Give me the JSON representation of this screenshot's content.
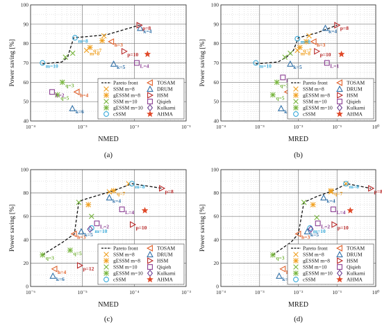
{
  "chart_data": [
    {
      "panel_label": "(a)",
      "type": "scatter",
      "xscale": "log",
      "xlabel": "NMED",
      "ylabel": "Power saving [%]",
      "xlim": [
        0.0001,
        0.1
      ],
      "ylim": [
        40,
        100
      ],
      "xticks": [
        "10⁻⁴",
        "10⁻³",
        "10⁻²",
        "10⁻¹"
      ],
      "yticks": [
        40,
        50,
        60,
        70,
        80,
        90,
        100
      ],
      "grid": true,
      "legend_position": "lower-right",
      "pareto_front": [
        [
          0.00017,
          69.5
        ],
        [
          0.0004,
          70.5
        ],
        [
          0.00052,
          73
        ],
        [
          0.00056,
          76
        ],
        [
          0.00068,
          83
        ],
        [
          0.0029,
          84.5
        ],
        [
          0.0125,
          89.5
        ]
      ],
      "points": [
        {
          "series": "SSM m=8",
          "x": 0.0012,
          "y": 76.5,
          "label": "m=8"
        },
        {
          "series": "SSM m=8",
          "x": 0.0026,
          "y": 84,
          "label": ""
        },
        {
          "series": "gESSM m=8",
          "x": 0.0014,
          "y": 78,
          "label": "q=7"
        },
        {
          "series": "gESSM m=8",
          "x": 0.0024,
          "y": 81.5,
          "label": ""
        },
        {
          "series": "SSM m=10",
          "x": 0.00047,
          "y": 73,
          "label": ""
        },
        {
          "series": "SSM m=10",
          "x": 0.00065,
          "y": 75,
          "label": ""
        },
        {
          "series": "gESSM m=10",
          "x": 0.00041,
          "y": 60,
          "label": "q=3"
        },
        {
          "series": "gESSM m=10",
          "x": 0.00033,
          "y": 53.5,
          "label": "q=5"
        },
        {
          "series": "cSSM",
          "x": 0.00017,
          "y": 70,
          "label": "m=10"
        },
        {
          "series": "cSSM",
          "x": 0.00072,
          "y": 83,
          "label": "m=8"
        },
        {
          "series": "TOSAM",
          "x": 0.00078,
          "y": 55,
          "label": "h=4"
        },
        {
          "series": "TOSAM",
          "x": 0.0036,
          "y": 81,
          "label": "h=3"
        },
        {
          "series": "DRUM",
          "x": 0.00064,
          "y": 46.5,
          "label": "k=6"
        },
        {
          "series": "DRUM",
          "x": 0.004,
          "y": 69.5,
          "label": "k=5"
        },
        {
          "series": "DRUM",
          "x": 0.013,
          "y": 88,
          "label": "k=4"
        },
        {
          "series": "HSM",
          "x": 0.0034,
          "y": 58,
          "label": "p=12"
        },
        {
          "series": "HSM",
          "x": 0.0064,
          "y": 76,
          "label": "p=10"
        },
        {
          "series": "HSM",
          "x": 0.0125,
          "y": 89.5,
          "label": "p=8"
        },
        {
          "series": "Qiqieh",
          "x": 0.00026,
          "y": 55,
          "label": "L=2"
        },
        {
          "series": "Qiqieh",
          "x": 0.0112,
          "y": 70,
          "label": "L=4"
        },
        {
          "series": "Kulkarni",
          "x": 0.013,
          "y": 52,
          "label": ""
        },
        {
          "series": "AHMA",
          "x": 0.018,
          "y": 74.5,
          "label": ""
        }
      ]
    },
    {
      "panel_label": "(b)",
      "type": "scatter",
      "xscale": "log",
      "xlabel": "MRED",
      "ylabel": "Power saving [%]",
      "xlim": [
        0.0001,
        1
      ],
      "ylim": [
        40,
        100
      ],
      "xticks": [
        "10⁻⁴",
        "10⁻³",
        "10⁻²",
        "10⁻¹",
        "10⁰"
      ],
      "yticks": [
        40,
        50,
        60,
        70,
        80,
        90,
        100
      ],
      "grid": true,
      "legend_position": "lower-right",
      "pareto_front": [
        [
          0.0008,
          69.5
        ],
        [
          0.003,
          70.5
        ],
        [
          0.005,
          73
        ],
        [
          0.0075,
          76.5
        ],
        [
          0.01,
          83
        ],
        [
          0.03,
          85.5
        ],
        [
          0.1,
          89.5
        ]
      ],
      "points": [
        {
          "series": "SSM m=8",
          "x": 0.0095,
          "y": 76.5,
          "label": "m=8"
        },
        {
          "series": "SSM m=8",
          "x": 0.019,
          "y": 84,
          "label": ""
        },
        {
          "series": "gESSM m=8",
          "x": 0.011,
          "y": 78,
          "label": "q=7"
        },
        {
          "series": "gESSM m=8",
          "x": 0.016,
          "y": 81,
          "label": ""
        },
        {
          "series": "SSM m=10",
          "x": 0.0045,
          "y": 73,
          "label": ""
        },
        {
          "series": "SSM m=10",
          "x": 0.0062,
          "y": 75,
          "label": ""
        },
        {
          "series": "gESSM m=10",
          "x": 0.0028,
          "y": 60,
          "label": "q=3"
        },
        {
          "series": "gESSM m=10",
          "x": 0.0022,
          "y": 53.5,
          "label": "q=5"
        },
        {
          "series": "cSSM",
          "x": 0.0008,
          "y": 70,
          "label": "m=10"
        },
        {
          "series": "cSSM",
          "x": 0.0095,
          "y": 82.5,
          "label": "m=8"
        },
        {
          "series": "TOSAM",
          "x": 0.0052,
          "y": 55,
          "label": "h=4"
        },
        {
          "series": "TOSAM",
          "x": 0.025,
          "y": 81,
          "label": "h=3"
        },
        {
          "series": "DRUM",
          "x": 0.0036,
          "y": 46.5,
          "label": "k=6"
        },
        {
          "series": "DRUM",
          "x": 0.0062,
          "y": 69.5,
          "label": "k=5"
        },
        {
          "series": "DRUM",
          "x": 0.05,
          "y": 88,
          "label": "k=4"
        },
        {
          "series": "HSM",
          "x": 0.01,
          "y": 58,
          "label": "p=12"
        },
        {
          "series": "HSM",
          "x": 0.03,
          "y": 76,
          "label": "p=10"
        },
        {
          "series": "HSM",
          "x": 0.1,
          "y": 89.5,
          "label": "p=8"
        },
        {
          "series": "Qiqieh",
          "x": 0.004,
          "y": 62.5,
          "label": "L=2"
        },
        {
          "series": "Qiqieh",
          "x": 0.055,
          "y": 70,
          "label": "L=1"
        },
        {
          "series": "Kulkarni",
          "x": 0.028,
          "y": 52,
          "label": ""
        },
        {
          "series": "AHMA",
          "x": 0.13,
          "y": 74.5,
          "label": ""
        }
      ]
    },
    {
      "panel_label": "(c)",
      "type": "scatter",
      "xscale": "log",
      "xlabel": "NMED",
      "ylabel": "Power saving [%]",
      "xlim": [
        1e-06,
        0.001
      ],
      "ylim": [
        0,
        100
      ],
      "xticks": [
        "10⁻⁶",
        "10⁻⁵",
        "10⁻⁴",
        "10⁻³"
      ],
      "yticks": [
        0,
        20,
        40,
        60,
        80,
        100
      ],
      "grid": true,
      "legend_position": "lower-right",
      "pareto_front": [
        [
          1.7e-06,
          27
        ],
        [
          4.2e-06,
          38
        ],
        [
          7e-06,
          45
        ],
        [
          8.5e-06,
          72
        ],
        [
          1e-05,
          74
        ],
        [
          4e-05,
          82
        ],
        [
          9e-05,
          88
        ],
        [
          0.00035,
          84
        ]
      ],
      "points": [
        {
          "series": "SSM m=8",
          "x": 3.3e-05,
          "y": 81,
          "label": ""
        },
        {
          "series": "SSM m=8",
          "x": 7.8e-05,
          "y": 88,
          "label": ""
        },
        {
          "series": "gESSM m=8",
          "x": 4e-05,
          "y": 82,
          "label": "q=7"
        },
        {
          "series": "gESSM m=8",
          "x": 1.3e-05,
          "y": 70,
          "label": ""
        },
        {
          "series": "SSM m=10",
          "x": 8.5e-06,
          "y": 72,
          "label": ""
        },
        {
          "series": "SSM m=10",
          "x": 1.5e-05,
          "y": 60,
          "label": ""
        },
        {
          "series": "gESSM m=10",
          "x": 1.7e-06,
          "y": 27,
          "label": "q=3"
        },
        {
          "series": "gESSM m=10",
          "x": 5.8e-06,
          "y": 31,
          "label": "q=5"
        },
        {
          "series": "cSSM",
          "x": 1.5e-05,
          "y": 50,
          "label": "m=10"
        },
        {
          "series": "cSSM",
          "x": 9e-05,
          "y": 88,
          "label": "m=8"
        },
        {
          "series": "TOSAM",
          "x": 6.9e-06,
          "y": 45,
          "label": "h=3"
        },
        {
          "series": "TOSAM",
          "x": 2.9e-06,
          "y": 15,
          "label": "h=4"
        },
        {
          "series": "DRUM",
          "x": 2.7e-06,
          "y": 9,
          "label": "k=6"
        },
        {
          "series": "DRUM",
          "x": 9.5e-06,
          "y": 47,
          "label": "k=5"
        },
        {
          "series": "DRUM",
          "x": 3.3e-05,
          "y": 76,
          "label": "k=4"
        },
        {
          "series": "HSM",
          "x": 8.9e-06,
          "y": 18,
          "label": "p=12"
        },
        {
          "series": "HSM",
          "x": 9.3e-05,
          "y": 53,
          "label": "p=10"
        },
        {
          "series": "HSM",
          "x": 0.00034,
          "y": 84,
          "label": "p=8"
        },
        {
          "series": "Qiqieh",
          "x": 1.9e-05,
          "y": 54,
          "label": "L=2"
        },
        {
          "series": "Qiqieh",
          "x": 5.8e-05,
          "y": 66,
          "label": "L=4"
        },
        {
          "series": "Kulkarni",
          "x": 1.4e-05,
          "y": 49,
          "label": ""
        },
        {
          "series": "AHMA",
          "x": 0.00016,
          "y": 65,
          "label": ""
        }
      ]
    },
    {
      "panel_label": "(d)",
      "type": "scatter",
      "xscale": "log",
      "xlabel": "MRED",
      "ylabel": "Power saving [%]",
      "xlim": [
        0.0001,
        1
      ],
      "ylim": [
        0,
        100
      ],
      "xticks": [
        "10⁻⁴",
        "10⁻³",
        "10⁻²",
        "10⁻¹",
        "10⁰"
      ],
      "yticks": [
        0,
        20,
        40,
        60,
        80,
        100
      ],
      "grid": true,
      "legend_position": "lower-right",
      "pareto_front": [
        [
          0.0022,
          27
        ],
        [
          0.0065,
          38
        ],
        [
          0.01,
          45
        ],
        [
          0.014,
          72
        ],
        [
          0.03,
          77
        ],
        [
          0.08,
          82
        ],
        [
          0.18,
          88
        ],
        [
          0.75,
          84
        ]
      ],
      "points": [
        {
          "series": "SSM m=8",
          "x": 0.07,
          "y": 81,
          "label": ""
        },
        {
          "series": "SSM m=8",
          "x": 0.17,
          "y": 88,
          "label": ""
        },
        {
          "series": "gESSM m=8",
          "x": 0.07,
          "y": 82,
          "label": "q=7"
        },
        {
          "series": "gESSM m=8",
          "x": 0.024,
          "y": 70,
          "label": ""
        },
        {
          "series": "SSM m=10",
          "x": 0.014,
          "y": 72,
          "label": ""
        },
        {
          "series": "SSM m=10",
          "x": 0.03,
          "y": 59,
          "label": ""
        },
        {
          "series": "gESSM m=10",
          "x": 0.0022,
          "y": 27,
          "label": "q=3"
        },
        {
          "series": "gESSM m=10",
          "x": 0.0085,
          "y": 31,
          "label": "q=5"
        },
        {
          "series": "cSSM",
          "x": 0.02,
          "y": 50,
          "label": "m=10"
        },
        {
          "series": "cSSM",
          "x": 0.17,
          "y": 88,
          "label": "m=8"
        },
        {
          "series": "TOSAM",
          "x": 0.01,
          "y": 45,
          "label": "h=3"
        },
        {
          "series": "TOSAM",
          "x": 0.004,
          "y": 15,
          "label": "h=4"
        },
        {
          "series": "DRUM",
          "x": 0.0032,
          "y": 9,
          "label": "k=6"
        },
        {
          "series": "DRUM",
          "x": 0.017,
          "y": 47,
          "label": "k=5"
        },
        {
          "series": "DRUM",
          "x": 0.045,
          "y": 76,
          "label": "k=4"
        },
        {
          "series": "HSM",
          "x": 0.0165,
          "y": 18,
          "label": ""
        },
        {
          "series": "HSM",
          "x": 0.085,
          "y": 53,
          "label": "p=10"
        },
        {
          "series": "HSM",
          "x": 0.75,
          "y": 84,
          "label": "p=8"
        },
        {
          "series": "Qiqieh",
          "x": 0.032,
          "y": 54,
          "label": "L=2"
        },
        {
          "series": "Qiqieh",
          "x": 0.08,
          "y": 66,
          "label": "L=4"
        },
        {
          "series": "Kulkarni",
          "x": 0.021,
          "y": 49,
          "label": ""
        },
        {
          "series": "AHMA",
          "x": 0.22,
          "y": 65,
          "label": ""
        }
      ]
    }
  ],
  "legend": [
    {
      "name": "Pareto front",
      "marker": "dashed-line",
      "color": "#111111"
    },
    {
      "name": "SSM m=8",
      "marker": "x",
      "color": "#f0a020"
    },
    {
      "name": "gESSM m=8",
      "marker": "star",
      "color": "#f0a020"
    },
    {
      "name": "SSM m=10",
      "marker": "x",
      "color": "#76b43c"
    },
    {
      "name": "gESSM m=10",
      "marker": "star",
      "color": "#76b43c"
    },
    {
      "name": "cSSM",
      "marker": "circle",
      "color": "#35a8d8"
    },
    {
      "name": "TOSAM",
      "marker": "triangle-left",
      "color": "#e0602a"
    },
    {
      "name": "DRUM",
      "marker": "triangle-up",
      "color": "#3070a8"
    },
    {
      "name": "HSM",
      "marker": "triangle-right",
      "color": "#b82828"
    },
    {
      "name": "Qiqieh",
      "marker": "square",
      "color": "#8a3d92"
    },
    {
      "name": "Kulkarni",
      "marker": "diamond",
      "color": "#6a3d92"
    },
    {
      "name": "AHMA",
      "marker": "pentagram",
      "color": "#e04828"
    }
  ]
}
